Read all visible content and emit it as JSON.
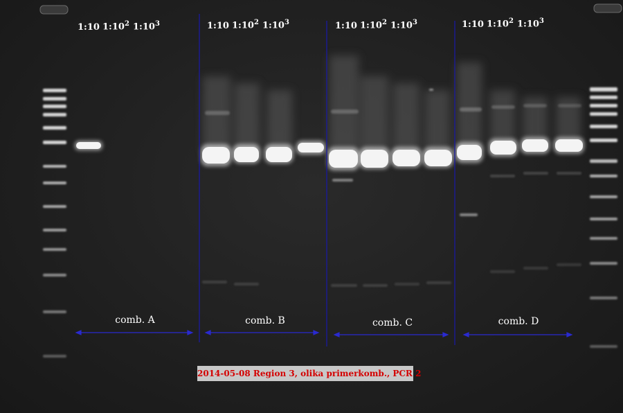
{
  "dilution_labels": {
    "a": {
      "l1": "1:10",
      "l2_base": "1:10",
      "l2_exp": "2",
      "l3_base": "1:10",
      "l3_exp": "3"
    },
    "b": {
      "l1": "1:10",
      "l2_base": "1:10",
      "l2_exp": "2",
      "l3_base": "1:10",
      "l3_exp": "3"
    },
    "c": {
      "l1": "1:10",
      "l2_base": "1:10",
      "l2_exp": "2",
      "l3_base": "1:10",
      "l3_exp": "3"
    },
    "d": {
      "l1": "1:10",
      "l2_base": "1:10",
      "l2_exp": "2",
      "l3_base": "1:10",
      "l3_exp": "3"
    }
  },
  "combinations": {
    "a": "comb. A",
    "b": "comb. B",
    "c": "comb. C",
    "d": "comb. D"
  },
  "caption": "2014-05-08 Region 3, olika primerkomb., PCR 2",
  "colors": {
    "background": "#202020",
    "divider": "#1a1aa0",
    "arrow": "#2a2ad0",
    "caption_text": "#d40000",
    "caption_bg": "#c8c8c8"
  }
}
